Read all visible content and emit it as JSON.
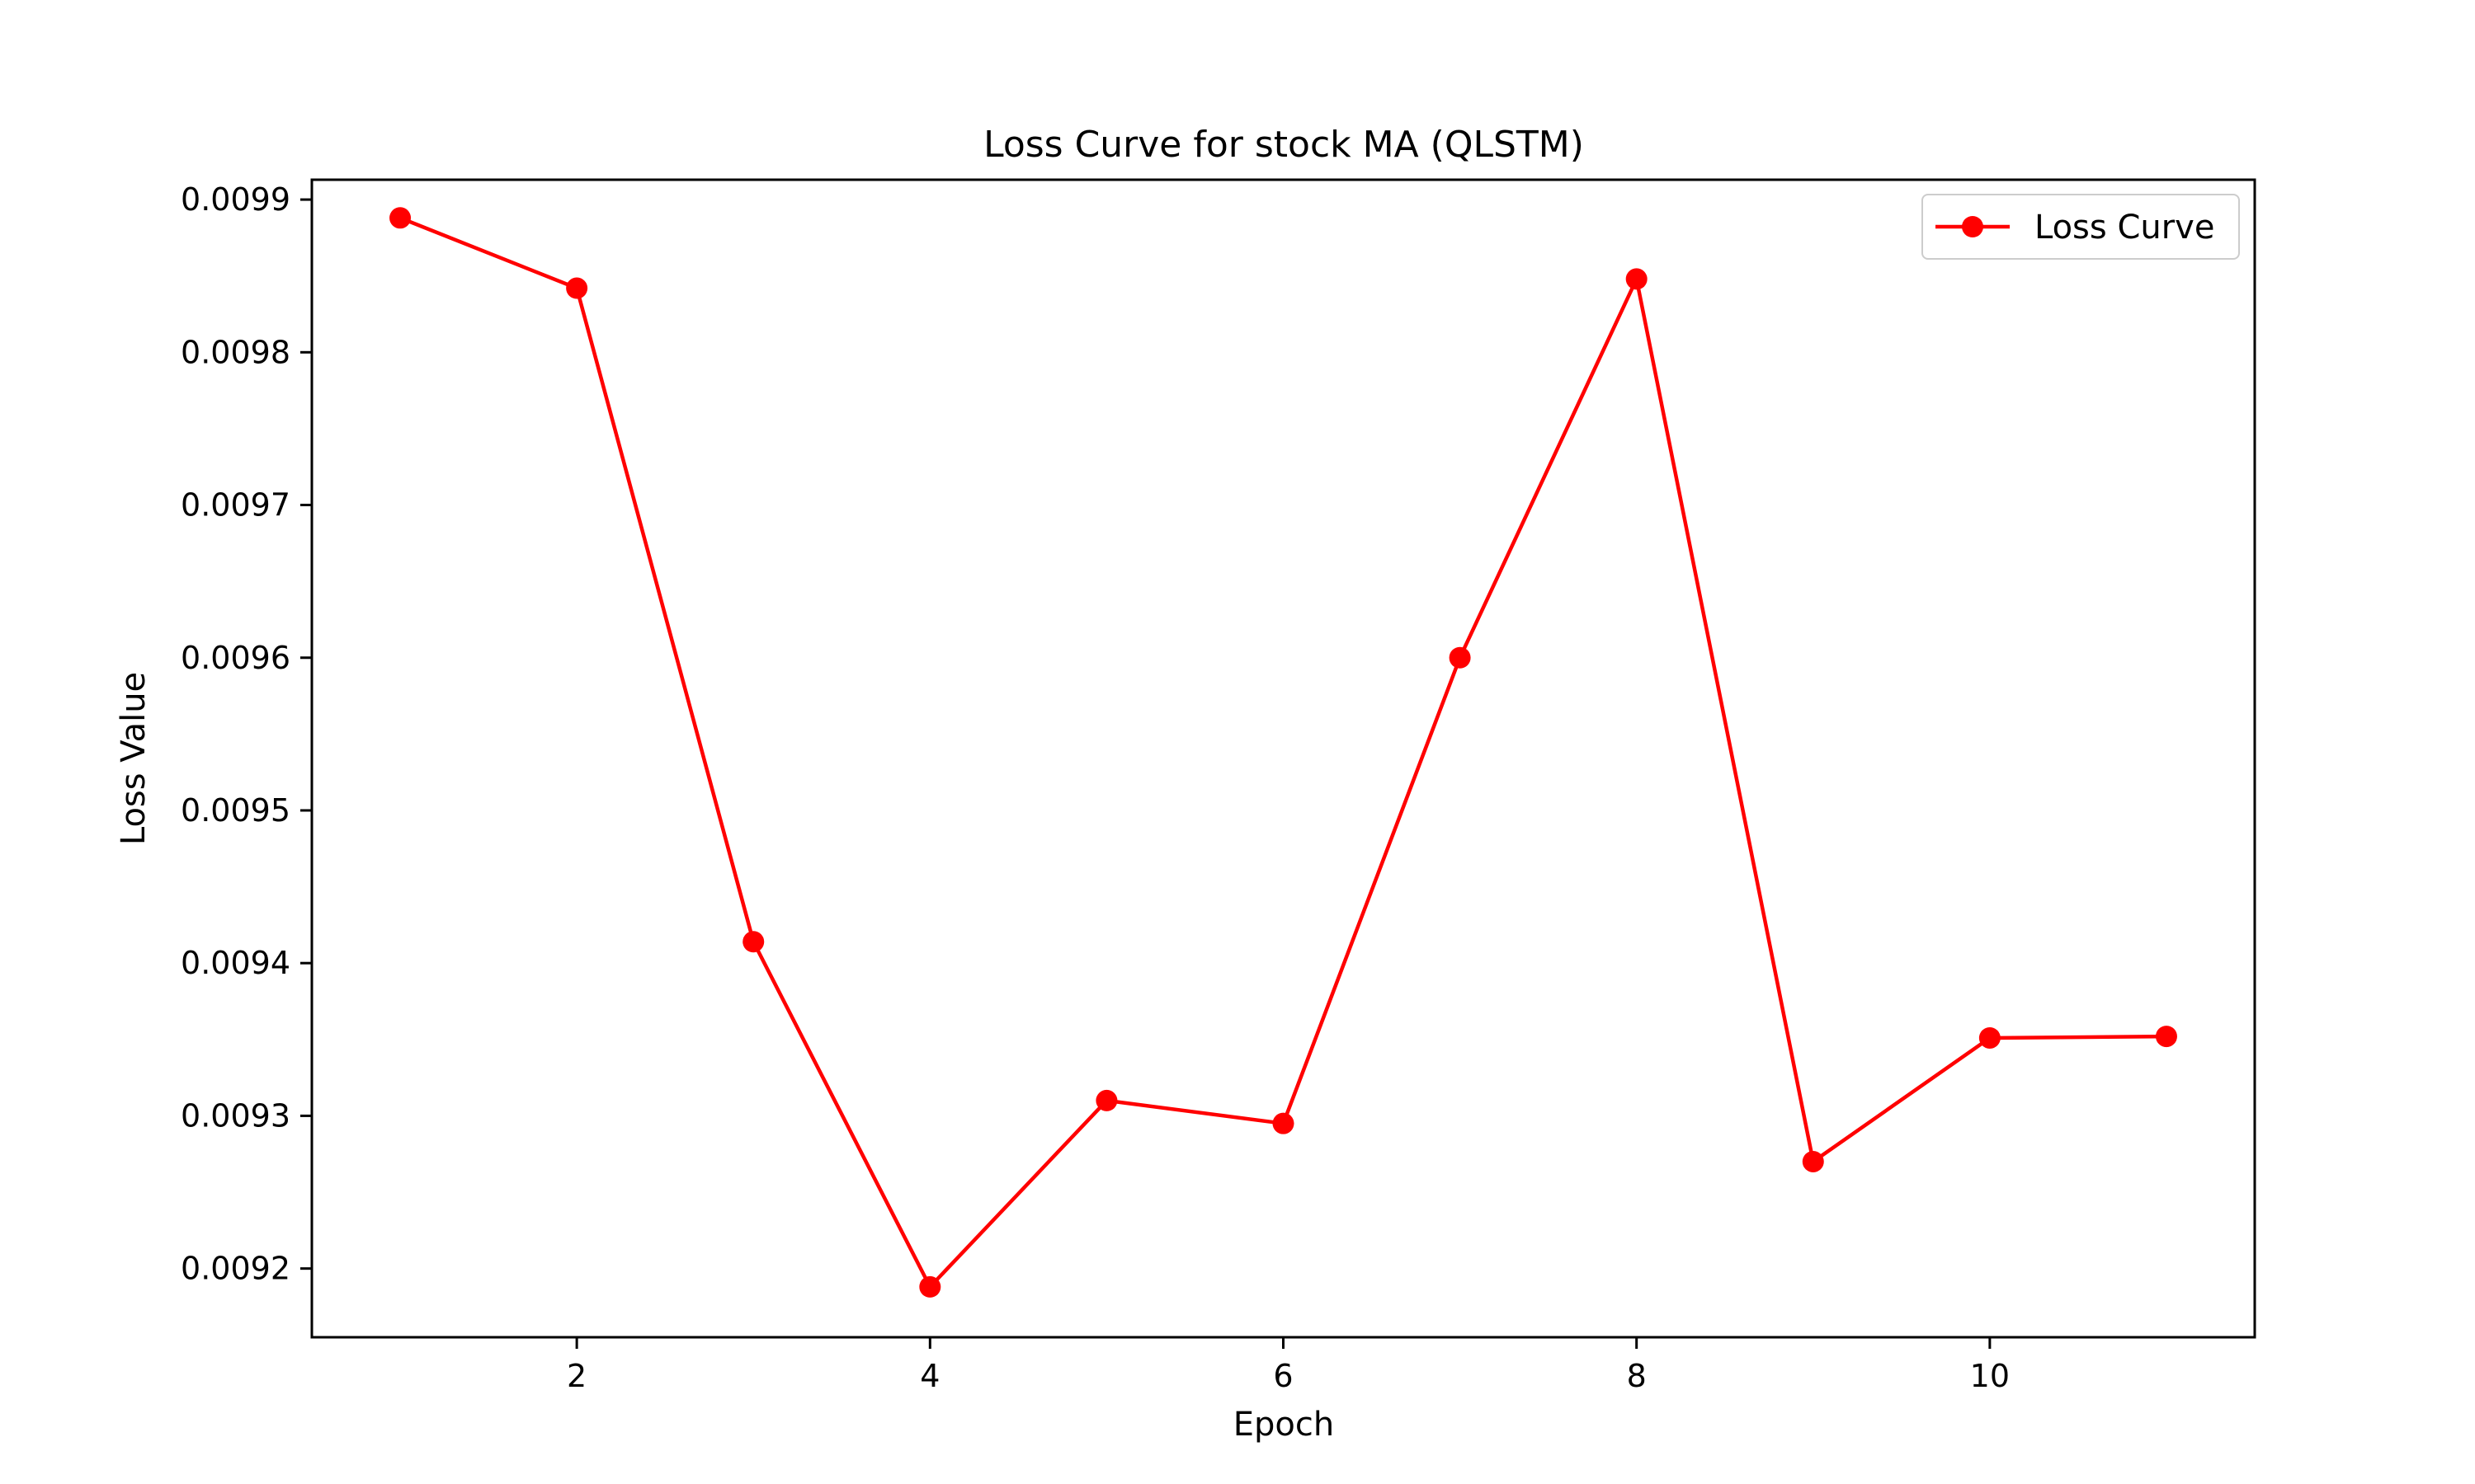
{
  "chart_data": {
    "type": "line",
    "title": "Loss Curve for stock MA (QLSTM)",
    "xlabel": "Epoch",
    "ylabel": "Loss Value",
    "xlim": [
      0.5,
      11.5
    ],
    "ylim": [
      0.009155,
      0.009913
    ],
    "xticks": [
      2,
      4,
      6,
      8,
      10
    ],
    "xtick_labels": [
      "2",
      "4",
      "6",
      "8",
      "10"
    ],
    "yticks": [
      0.0092,
      0.0093,
      0.0094,
      0.0095,
      0.0096,
      0.0097,
      0.0098,
      0.0099
    ],
    "ytick_labels": [
      "0.0092",
      "0.0093",
      "0.0094",
      "0.0095",
      "0.0096",
      "0.0097",
      "0.0098",
      "0.0099"
    ],
    "grid": false,
    "legend_position": "top-right",
    "series": [
      {
        "name": "Loss Curve",
        "color": "#ff0000",
        "marker": "circle",
        "x": [
          1,
          2,
          3,
          4,
          5,
          6,
          7,
          8,
          9,
          10,
          11
        ],
        "y": [
          0.009888,
          0.009842,
          0.009414,
          0.009188,
          0.00931,
          0.009295,
          0.0096,
          0.009848,
          0.00927,
          0.009351,
          0.009352
        ]
      }
    ]
  }
}
